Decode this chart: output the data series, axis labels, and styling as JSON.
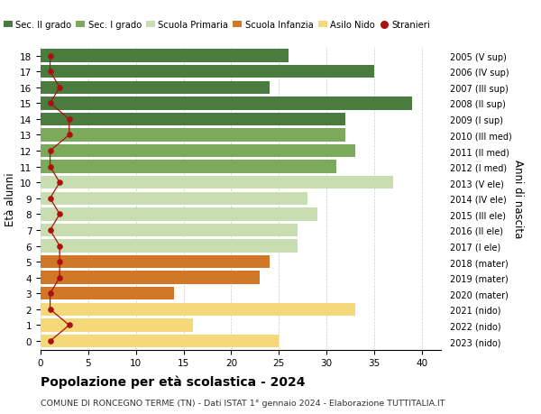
{
  "ages": [
    18,
    17,
    16,
    15,
    14,
    13,
    12,
    11,
    10,
    9,
    8,
    7,
    6,
    5,
    4,
    3,
    2,
    1,
    0
  ],
  "years": [
    "2005 (V sup)",
    "2006 (IV sup)",
    "2007 (III sup)",
    "2008 (II sup)",
    "2009 (I sup)",
    "2010 (III med)",
    "2011 (II med)",
    "2012 (I med)",
    "2013 (V ele)",
    "2014 (IV ele)",
    "2015 (III ele)",
    "2016 (II ele)",
    "2017 (I ele)",
    "2018 (mater)",
    "2019 (mater)",
    "2020 (mater)",
    "2021 (nido)",
    "2022 (nido)",
    "2023 (nido)"
  ],
  "bar_values": [
    26,
    35,
    24,
    39,
    32,
    32,
    33,
    31,
    37,
    28,
    29,
    27,
    27,
    24,
    23,
    14,
    33,
    16,
    25
  ],
  "bar_colors": [
    "#4a7c3f",
    "#4a7c3f",
    "#4a7c3f",
    "#4a7c3f",
    "#4a7c3f",
    "#7aaa5a",
    "#7aaa5a",
    "#7aaa5a",
    "#c8ddb0",
    "#c8ddb0",
    "#c8ddb0",
    "#c8ddb0",
    "#c8ddb0",
    "#d07828",
    "#d07828",
    "#d07828",
    "#f5d87a",
    "#f5d87a",
    "#f5d87a"
  ],
  "stranieri_values": [
    1,
    1,
    2,
    1,
    3,
    3,
    1,
    1,
    2,
    1,
    2,
    1,
    2,
    2,
    2,
    1,
    1,
    3,
    1
  ],
  "stranieri_color": "#aa1111",
  "xlim": [
    0,
    42
  ],
  "xticks": [
    0,
    5,
    10,
    15,
    20,
    25,
    30,
    35,
    40
  ],
  "title": "Popolazione per età scolastica - 2024",
  "subtitle": "COMUNE DI RONCEGNO TERME (TN) - Dati ISTAT 1° gennaio 2024 - Elaborazione TUTTITALIA.IT",
  "ylabel_left": "Età alunni",
  "ylabel_right": "Anni di nascita",
  "legend_labels": [
    "Sec. II grado",
    "Sec. I grado",
    "Scuola Primaria",
    "Scuola Infanzia",
    "Asilo Nido",
    "Stranieri"
  ],
  "legend_colors": [
    "#4a7c3f",
    "#7aaa5a",
    "#c8ddb0",
    "#d07828",
    "#f5d87a",
    "#aa1111"
  ],
  "bg_color": "#ffffff",
  "bar_height": 0.82,
  "grid_color": "#cccccc"
}
